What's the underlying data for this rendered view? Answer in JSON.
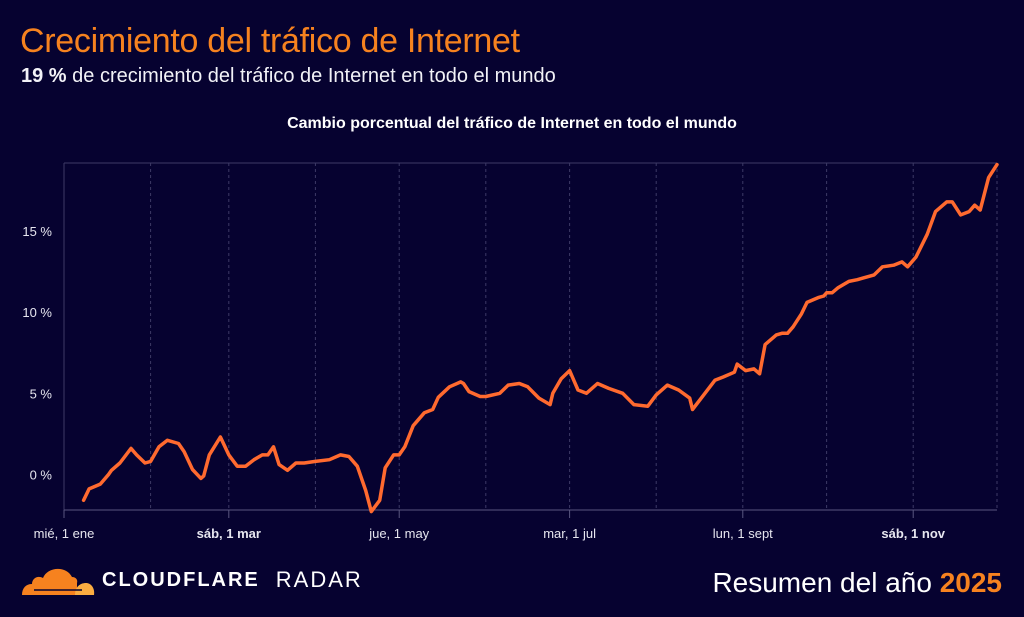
{
  "header": {
    "title": "Crecimiento del tráfico de Internet",
    "subtitle_value": "19 %",
    "subtitle_text": " de crecimiento del tráfico de Internet en todo el mundo"
  },
  "footer": {
    "brand": "CLOUDFLARE",
    "product": "RADAR",
    "summary_text": "Resumen del año ",
    "year": "2025"
  },
  "colors": {
    "background": "#060230",
    "accent": "#f6821f",
    "line": "#ff6a2f",
    "axis": "#3d3a66"
  },
  "chart_data": {
    "type": "line",
    "title": "Cambio porcentual del tráfico de Internet en todo el mundo",
    "xlabel": "",
    "ylabel": "",
    "xlim": [
      "2025-01-01",
      "2025-12-01"
    ],
    "ylim": [
      -2.2,
      19.2
    ],
    "grid": "vertical dashed",
    "legend": "none",
    "y_ticks": [
      {
        "value": 0,
        "label": "0 %"
      },
      {
        "value": 5,
        "label": "5 %"
      },
      {
        "value": 10,
        "label": "10 %"
      },
      {
        "value": 15,
        "label": "15 %"
      }
    ],
    "x_ticks": [
      {
        "date": "2025-01-01",
        "label": "mié, 1 ene",
        "bold": false
      },
      {
        "date": "2025-03-01",
        "label": "sáb, 1 mar",
        "bold": true
      },
      {
        "date": "2025-05-01",
        "label": "jue, 1 may",
        "bold": false
      },
      {
        "date": "2025-07-01",
        "label": "mar, 1 jul",
        "bold": false
      },
      {
        "date": "2025-09-01",
        "label": "lun, 1 sept",
        "bold": false
      },
      {
        "date": "2025-11-01",
        "label": "sáb, 1 nov",
        "bold": true
      }
    ],
    "gridlines": [
      "2025-02-01",
      "2025-03-01",
      "2025-04-01",
      "2025-05-01",
      "2025-06-01",
      "2025-07-01",
      "2025-08-01",
      "2025-09-01",
      "2025-10-01",
      "2025-11-01",
      "2025-12-01"
    ],
    "series": [
      {
        "x": [
          "2025-01-08",
          "2025-01-10",
          "2025-01-14",
          "2025-01-17",
          "2025-01-18",
          "2025-01-21",
          "2025-01-25",
          "2025-01-27",
          "2025-01-30",
          "2025-02-01",
          "2025-02-04",
          "2025-02-07",
          "2025-02-11",
          "2025-02-13",
          "2025-02-16",
          "2025-02-19",
          "2025-02-20",
          "2025-02-22",
          "2025-02-26",
          "2025-03-01",
          "2025-03-04",
          "2025-03-07",
          "2025-03-10",
          "2025-03-13",
          "2025-03-15",
          "2025-03-17",
          "2025-03-19",
          "2025-03-22",
          "2025-03-25",
          "2025-03-28",
          "2025-04-01",
          "2025-04-06",
          "2025-04-10",
          "2025-04-13",
          "2025-04-16",
          "2025-04-19",
          "2025-04-21",
          "2025-04-24",
          "2025-04-26",
          "2025-04-29",
          "2025-05-01",
          "2025-05-03",
          "2025-05-06",
          "2025-05-10",
          "2025-05-13",
          "2025-05-15",
          "2025-05-19",
          "2025-05-23",
          "2025-05-24",
          "2025-05-26",
          "2025-05-30",
          "2025-06-01",
          "2025-06-06",
          "2025-06-09",
          "2025-06-13",
          "2025-06-16",
          "2025-06-20",
          "2025-06-24",
          "2025-06-25",
          "2025-06-28",
          "2025-07-01",
          "2025-07-04",
          "2025-07-07",
          "2025-07-11",
          "2025-07-15",
          "2025-07-20",
          "2025-07-24",
          "2025-07-29",
          "2025-08-01",
          "2025-08-05",
          "2025-08-09",
          "2025-08-13",
          "2025-08-14",
          "2025-08-18",
          "2025-08-22",
          "2025-08-25",
          "2025-08-29",
          "2025-08-30",
          "2025-09-02",
          "2025-09-05",
          "2025-09-07",
          "2025-09-09",
          "2025-09-13",
          "2025-09-15",
          "2025-09-17",
          "2025-09-19",
          "2025-09-22",
          "2025-09-24",
          "2025-09-28",
          "2025-09-30",
          "2025-10-01",
          "2025-10-03",
          "2025-10-05",
          "2025-10-09",
          "2025-10-12",
          "2025-10-14",
          "2025-10-18",
          "2025-10-21",
          "2025-10-25",
          "2025-10-28",
          "2025-10-30",
          "2025-11-02",
          "2025-11-06",
          "2025-11-09",
          "2025-11-13",
          "2025-11-15",
          "2025-11-18",
          "2025-11-21",
          "2025-11-23",
          "2025-11-25",
          "2025-11-28",
          "2025-12-01"
        ],
        "y": [
          -1.6,
          -0.9,
          -0.6,
          0,
          0.25,
          0.7,
          1.6,
          1.2,
          0.7,
          0.8,
          1.7,
          2.1,
          1.9,
          1.4,
          0.3,
          -0.25,
          -0.1,
          1.2,
          2.3,
          1.2,
          0.5,
          0.5,
          0.9,
          1.2,
          1.2,
          1.7,
          0.6,
          0.25,
          0.7,
          0.7,
          0.8,
          0.9,
          1.2,
          1.1,
          0.5,
          -1.0,
          -2.3,
          -1.6,
          0.4,
          1.2,
          1.2,
          1.7,
          3.0,
          3.8,
          4.0,
          4.75,
          5.4,
          5.7,
          5.6,
          5.1,
          4.8,
          4.8,
          5.0,
          5.5,
          5.6,
          5.4,
          4.7,
          4.3,
          5.0,
          5.9,
          6.4,
          5.2,
          5.0,
          5.6,
          5.3,
          5.0,
          4.3,
          4.2,
          4.9,
          5.5,
          5.2,
          4.7,
          4.0,
          4.9,
          5.8,
          6.0,
          6.3,
          6.8,
          6.4,
          6.5,
          6.2,
          8.0,
          8.6,
          8.7,
          8.7,
          9.1,
          9.9,
          10.6,
          10.9,
          11.0,
          11.2,
          11.2,
          11.5,
          11.9,
          12.0,
          12.1,
          12.3,
          12.8,
          12.9,
          13.1,
          12.8,
          13.4,
          14.8,
          16.2,
          16.8,
          16.8,
          16.0,
          16.2,
          16.6,
          16.3,
          18.3,
          19.1
        ]
      }
    ]
  }
}
